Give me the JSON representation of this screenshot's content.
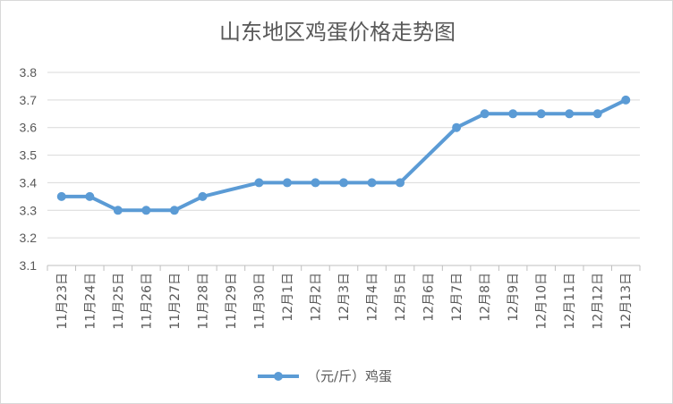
{
  "chart_data": {
    "type": "line",
    "title": "山东地区鸡蛋价格走势图",
    "categories": [
      "11月23日",
      "11月24日",
      "11月25日",
      "11月26日",
      "11月27日",
      "11月28日",
      "11月29日",
      "11月30日",
      "12月1日",
      "12月2日",
      "12月3日",
      "12月4日",
      "12月5日",
      "12月6日",
      "12月7日",
      "12月8日",
      "12月9日",
      "12月10日",
      "12月11日",
      "12月12日",
      "12月13日"
    ],
    "series": [
      {
        "name": "（元/斤）鸡蛋",
        "color": "#5b9bd5",
        "values": [
          3.35,
          3.35,
          3.3,
          3.3,
          3.3,
          3.35,
          null,
          3.4,
          3.4,
          3.4,
          3.4,
          3.4,
          3.4,
          null,
          3.6,
          3.65,
          3.65,
          3.65,
          3.65,
          3.65,
          3.7
        ]
      }
    ],
    "ylim": [
      3.1,
      3.8
    ],
    "yticks": [
      "3.1",
      "3.2",
      "3.3",
      "3.4",
      "3.5",
      "3.6",
      "3.7",
      "3.8"
    ],
    "grid": true,
    "legend": "bottom"
  }
}
